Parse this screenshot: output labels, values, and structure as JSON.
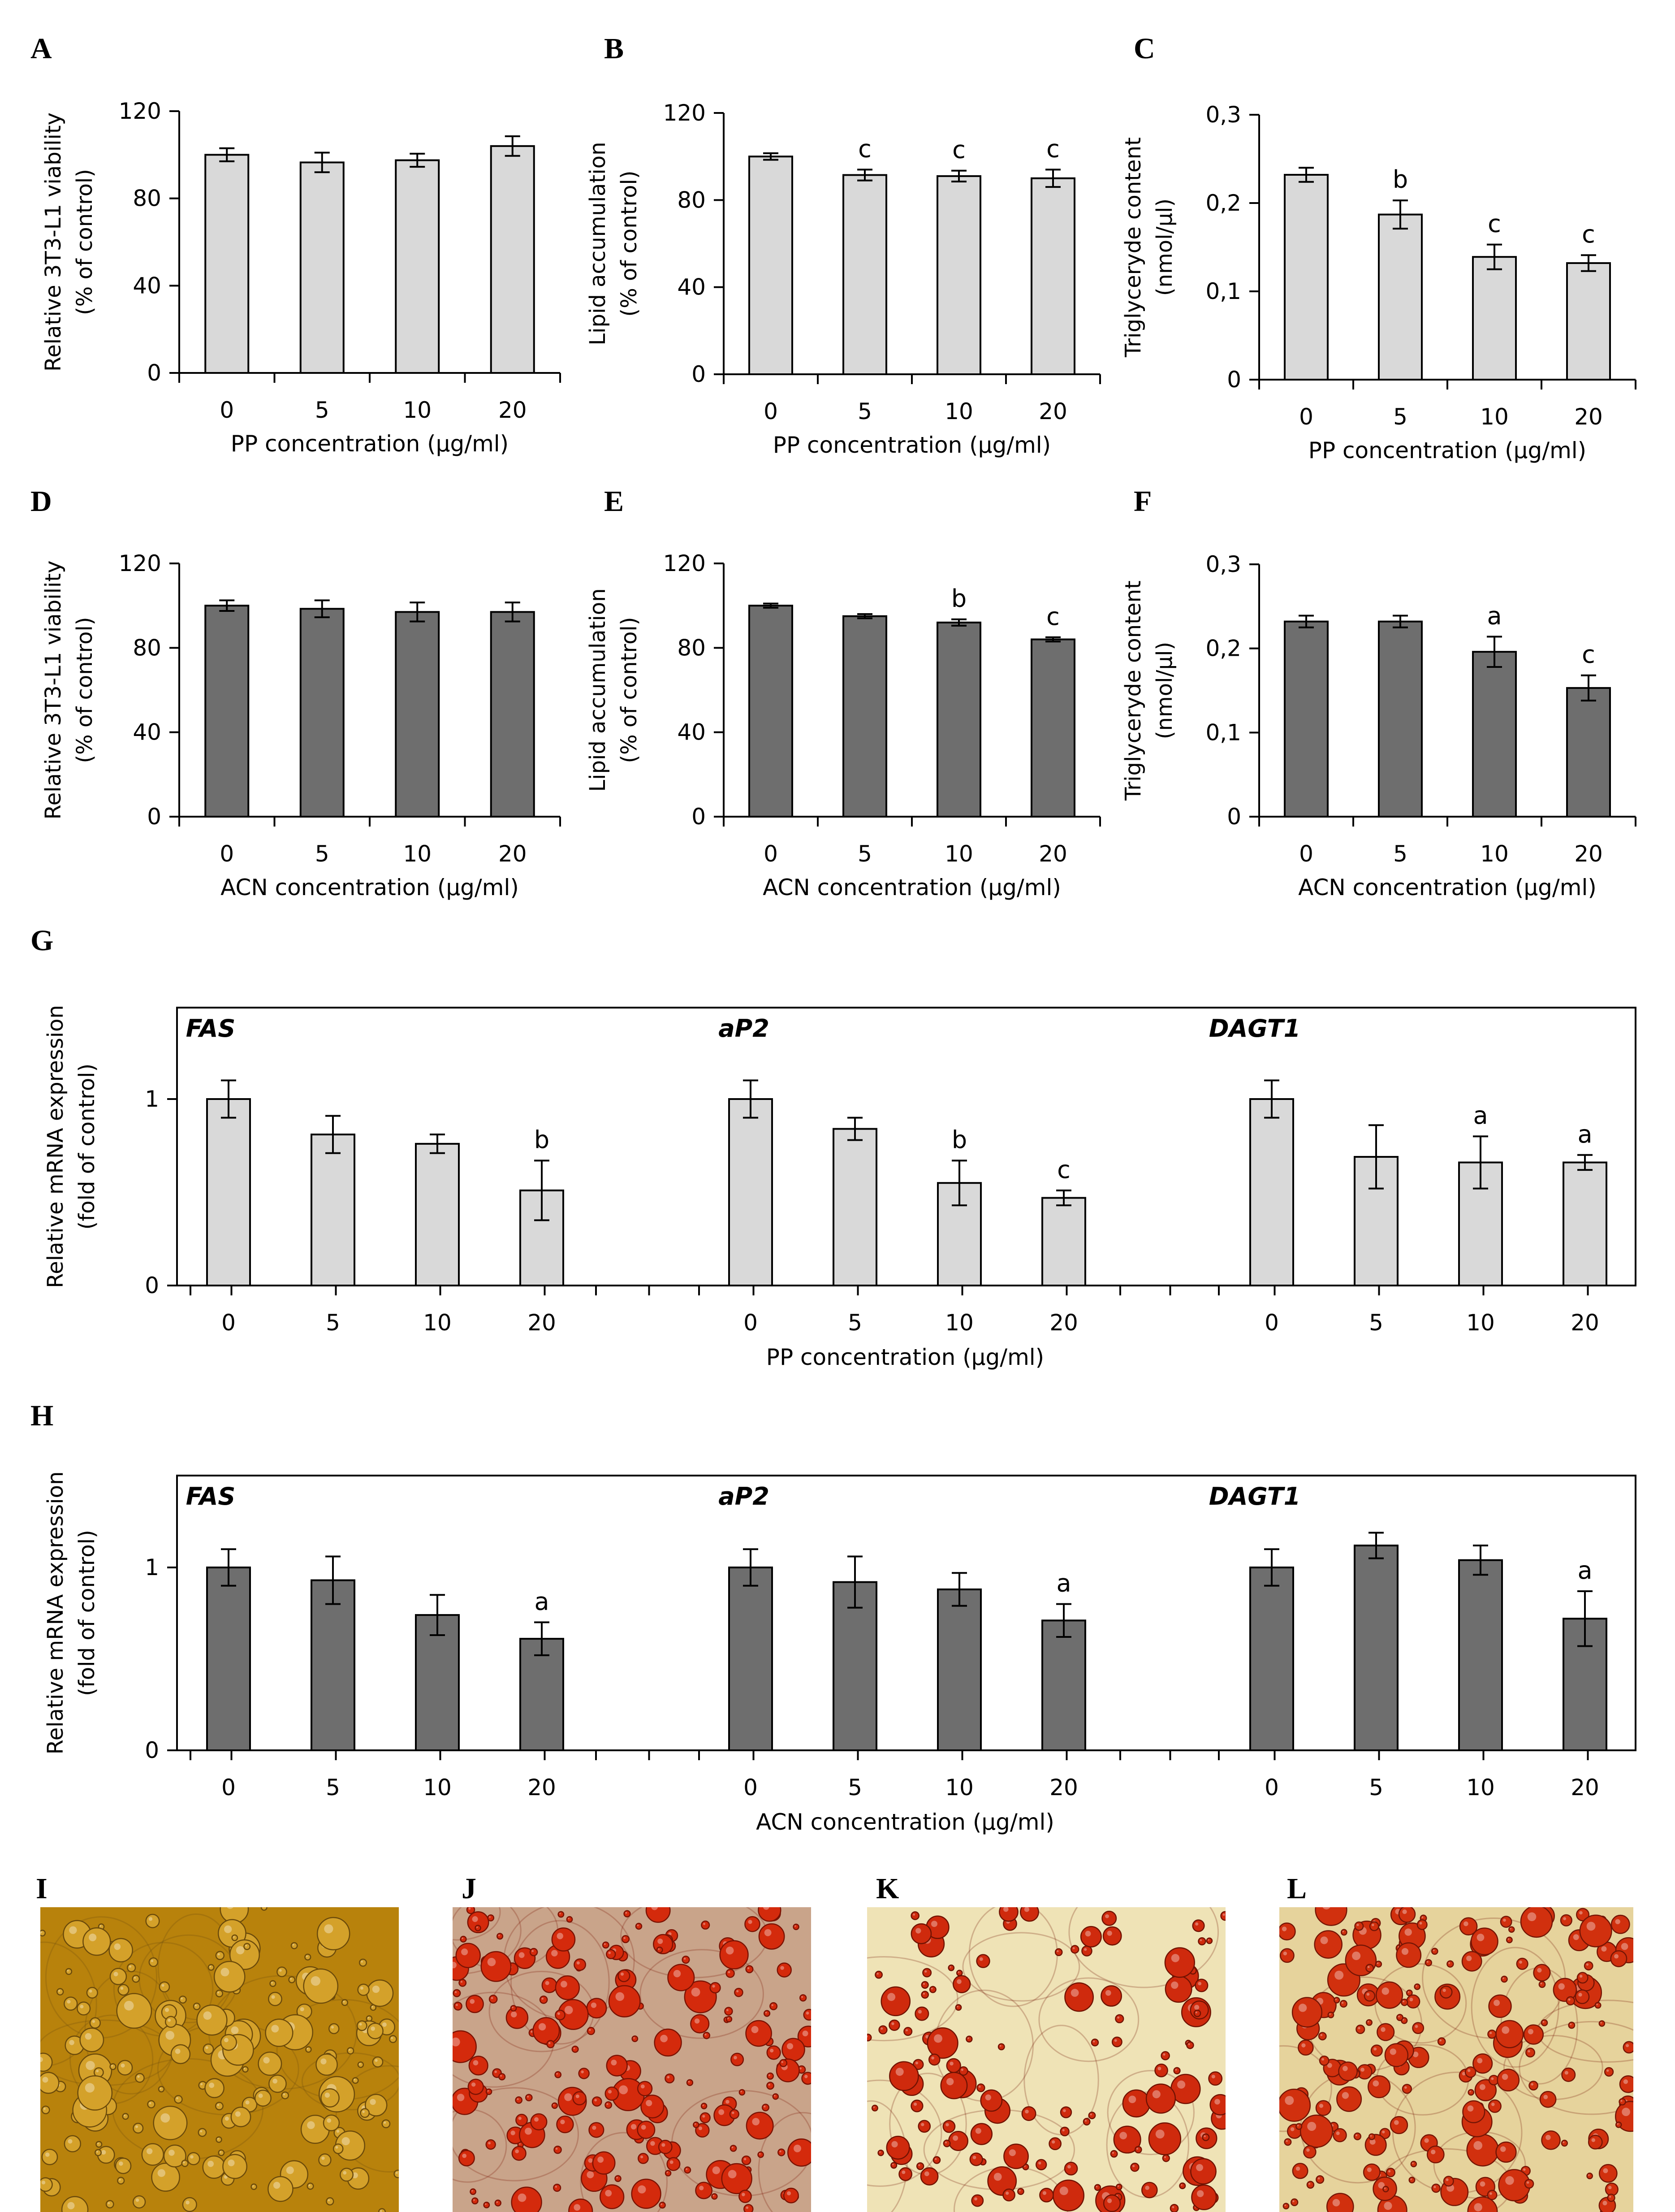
{
  "colors": {
    "pp_fill": "#d9d9d9",
    "acn_fill": "#6e6e6e",
    "stroke": "#000000",
    "text": "#000000"
  },
  "chart_data": [
    {
      "panel": "A",
      "type": "bar",
      "categories": [
        "0",
        "5",
        "10",
        "20"
      ],
      "values": [
        100,
        96.5,
        97.5,
        104
      ],
      "errors": [
        3,
        4.5,
        3,
        4.5
      ],
      "letters": [
        "",
        "",
        "",
        ""
      ],
      "ylim": [
        0,
        120
      ],
      "yticks": [
        "0",
        "40",
        "80",
        "120"
      ],
      "ylabel_lines": [
        "Relative 3T3-L1 viability",
        "(% of control)"
      ],
      "xlabel": "PP concentration (µg/ml)",
      "fill": "#d9d9d9"
    },
    {
      "panel": "B",
      "type": "bar",
      "categories": [
        "0",
        "5",
        "10",
        "20"
      ],
      "values": [
        100,
        91.5,
        91,
        90
      ],
      "errors": [
        1.5,
        2.5,
        2.5,
        4
      ],
      "letters": [
        "",
        "c",
        "c",
        "c"
      ],
      "ylim": [
        0,
        120
      ],
      "yticks": [
        "0",
        "40",
        "80",
        "120"
      ],
      "ylabel_lines": [
        "Lipid accumulation",
        "(% of control)"
      ],
      "xlabel": "PP concentration (µg/ml)",
      "fill": "#d9d9d9"
    },
    {
      "panel": "C",
      "type": "bar",
      "categories": [
        "0",
        "5",
        "10",
        "20"
      ],
      "values": [
        0.232,
        0.187,
        0.139,
        0.132
      ],
      "errors": [
        0.008,
        0.016,
        0.014,
        0.009
      ],
      "letters": [
        "",
        "b",
        "c",
        "c"
      ],
      "ylim": [
        0,
        0.3
      ],
      "yticks": [
        "0",
        "0,1",
        "0,2",
        "0,3"
      ],
      "ylabel_lines": [
        "Triglyceryde content",
        "(nmol/µl)"
      ],
      "xlabel": "PP concentration (µg/ml)",
      "fill": "#d9d9d9"
    },
    {
      "panel": "D",
      "type": "bar",
      "categories": [
        "0",
        "5",
        "10",
        "20"
      ],
      "values": [
        100,
        98.5,
        97,
        97
      ],
      "errors": [
        2.5,
        4,
        4.5,
        4.5
      ],
      "letters": [
        "",
        "",
        "",
        ""
      ],
      "ylim": [
        0,
        120
      ],
      "yticks": [
        "0",
        "40",
        "80",
        "120"
      ],
      "ylabel_lines": [
        "Relative 3T3-L1 viability",
        "(% of control)"
      ],
      "xlabel": "ACN concentration (µg/ml)",
      "fill": "#6e6e6e"
    },
    {
      "panel": "E",
      "type": "bar",
      "categories": [
        "0",
        "5",
        "10",
        "20"
      ],
      "values": [
        100,
        95,
        92,
        84
      ],
      "errors": [
        1,
        1,
        1.5,
        1
      ],
      "letters": [
        "",
        "",
        "b",
        "c"
      ],
      "ylim": [
        0,
        120
      ],
      "yticks": [
        "0",
        "40",
        "80",
        "120"
      ],
      "ylabel_lines": [
        "Lipid accumulation",
        "(% of control)"
      ],
      "xlabel": "ACN concentration (µg/ml)",
      "fill": "#6e6e6e"
    },
    {
      "panel": "F",
      "type": "bar",
      "categories": [
        "0",
        "5",
        "10",
        "20"
      ],
      "values": [
        0.232,
        0.232,
        0.196,
        0.153
      ],
      "errors": [
        0.007,
        0.007,
        0.018,
        0.015
      ],
      "letters": [
        "",
        "",
        "a",
        "c"
      ],
      "ylim": [
        0,
        0.3
      ],
      "yticks": [
        "0",
        "0,1",
        "0,2",
        "0,3"
      ],
      "ylabel_lines": [
        "Triglyceryde content",
        "(nmol/µl)"
      ],
      "xlabel": "ACN concentration (µg/ml)",
      "fill": "#6e6e6e"
    },
    {
      "panel": "G",
      "type": "bar",
      "categories": [
        "0",
        "5",
        "10",
        "20"
      ],
      "groups": [
        {
          "name": "FAS",
          "values": [
            1,
            0.81,
            0.76,
            0.51
          ],
          "errors": [
            0.1,
            0.1,
            0.05,
            0.16
          ],
          "letters": [
            "",
            "",
            "",
            "b"
          ]
        },
        {
          "name": "aP2",
          "values": [
            1,
            0.84,
            0.55,
            0.47
          ],
          "errors": [
            0.1,
            0.06,
            0.12,
            0.04
          ],
          "letters": [
            "",
            "",
            "b",
            "c"
          ]
        },
        {
          "name": "DAGT1",
          "values": [
            1,
            0.69,
            0.66,
            0.66
          ],
          "errors": [
            0.1,
            0.17,
            0.14,
            0.04
          ],
          "letters": [
            "",
            "",
            "a",
            "a"
          ]
        }
      ],
      "ylim": [
        0,
        1.5
      ],
      "yticks": [
        "0",
        "1"
      ],
      "ylabel_lines": [
        "Relative mRNA expression",
        "(fold of control)"
      ],
      "xlabel": "PP concentration (µg/ml)",
      "fill": "#d9d9d9"
    },
    {
      "panel": "H",
      "type": "bar",
      "categories": [
        "0",
        "5",
        "10",
        "20"
      ],
      "groups": [
        {
          "name": "FAS",
          "values": [
            1,
            0.93,
            0.74,
            0.61
          ],
          "errors": [
            0.1,
            0.13,
            0.11,
            0.09
          ],
          "letters": [
            "",
            "",
            "",
            "a"
          ]
        },
        {
          "name": "aP2",
          "values": [
            1,
            0.92,
            0.88,
            0.71
          ],
          "errors": [
            0.1,
            0.14,
            0.09,
            0.09
          ],
          "letters": [
            "",
            "",
            "",
            "a"
          ]
        },
        {
          "name": "DAGT1",
          "values": [
            1,
            1.12,
            1.04,
            0.72
          ],
          "errors": [
            0.1,
            0.07,
            0.08,
            0.15
          ],
          "letters": [
            "",
            "",
            "",
            "a"
          ]
        }
      ],
      "ylim": [
        0,
        1.5
      ],
      "yticks": [
        "0",
        "1"
      ],
      "ylabel_lines": [
        "Relative mRNA expression",
        "(fold of control)"
      ],
      "xlabel": "ACN concentration (µg/ml)",
      "fill": "#6e6e6e"
    }
  ],
  "micrographs": [
    {
      "panel": "I",
      "name": "unstained",
      "bg": "#b8820c",
      "droplet": "#d4a12a",
      "rim": "#6b4a0a"
    },
    {
      "panel": "J",
      "name": "oil-red-o-control",
      "bg": "#c9a48a",
      "droplet": "#d42a0c",
      "rim": "#7a1203"
    },
    {
      "panel": "K",
      "name": "oil-red-o-treated-1",
      "bg": "#efe3b6",
      "droplet": "#cf2a0d",
      "rim": "#701202"
    },
    {
      "panel": "L",
      "name": "oil-red-o-treated-2",
      "bg": "#e6d39c",
      "droplet": "#d1300e",
      "rim": "#741505"
    }
  ]
}
